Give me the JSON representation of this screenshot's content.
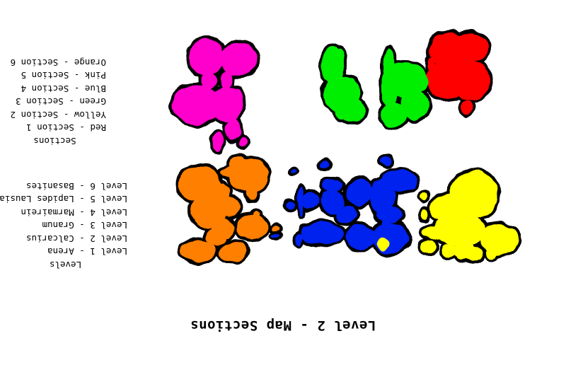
{
  "title": "Level 2 - Map Sections",
  "levels_legend": {
    "heading": "Levels",
    "items": [
      "Level 1 - Arena",
      "Level 2 - Calcarius",
      "Level 3 - Granum",
      "Level 4 - Marmairein",
      "Level 5 - Lapides Lausiae",
      "Level 6 - Basanites"
    ]
  },
  "sections_legend": {
    "heading": "Sections",
    "items": [
      "Red - Section 1",
      "Yellow - Section 2",
      "Green - Section 3",
      "Blue - Section 4",
      "Pink - Section 5",
      "Orange - Section 6"
    ]
  },
  "section_colors": {
    "red": "#ff0000",
    "yellow": "#ffff00",
    "green": "#00ee00",
    "blue": "#0022ee",
    "pink": "#ff00cc",
    "orange": "#ff7f00"
  },
  "orientation": "rotated 180 degrees"
}
